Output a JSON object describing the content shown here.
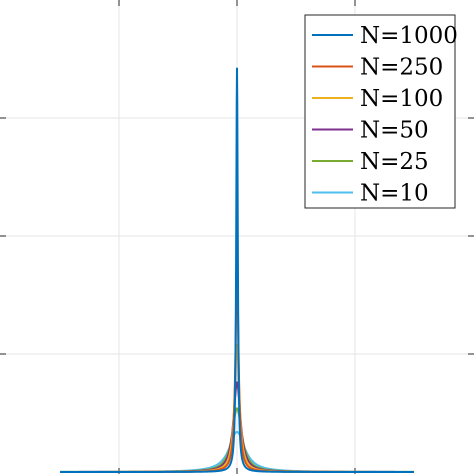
{
  "chart_data": {
    "type": "line",
    "title": "",
    "xlabel": "",
    "ylabel": "",
    "xlim": [
      -1.5,
      1.5
    ],
    "ylim": [
      0,
      3.2
    ],
    "xticks": [
      -1,
      0,
      1
    ],
    "yticks": [
      0,
      1,
      2,
      3
    ],
    "grid": true,
    "legend_position": "top-right",
    "series": [
      {
        "name": "N=1000",
        "color": "#0072BD",
        "peak": 3.42,
        "width": 0.008
      },
      {
        "name": "N=250",
        "color": "#D95319",
        "peak": 1.71,
        "width": 0.016
      },
      {
        "name": "N=100",
        "color": "#EDB120",
        "peak": 1.08,
        "width": 0.025
      },
      {
        "name": "N=50",
        "color": "#7E2F8E",
        "peak": 0.76,
        "width": 0.036
      },
      {
        "name": "N=25",
        "color": "#77AC30",
        "peak": 0.54,
        "width": 0.05
      },
      {
        "name": "N=10",
        "color": "#4DBEEE",
        "peak": 0.34,
        "width": 0.08
      }
    ]
  }
}
